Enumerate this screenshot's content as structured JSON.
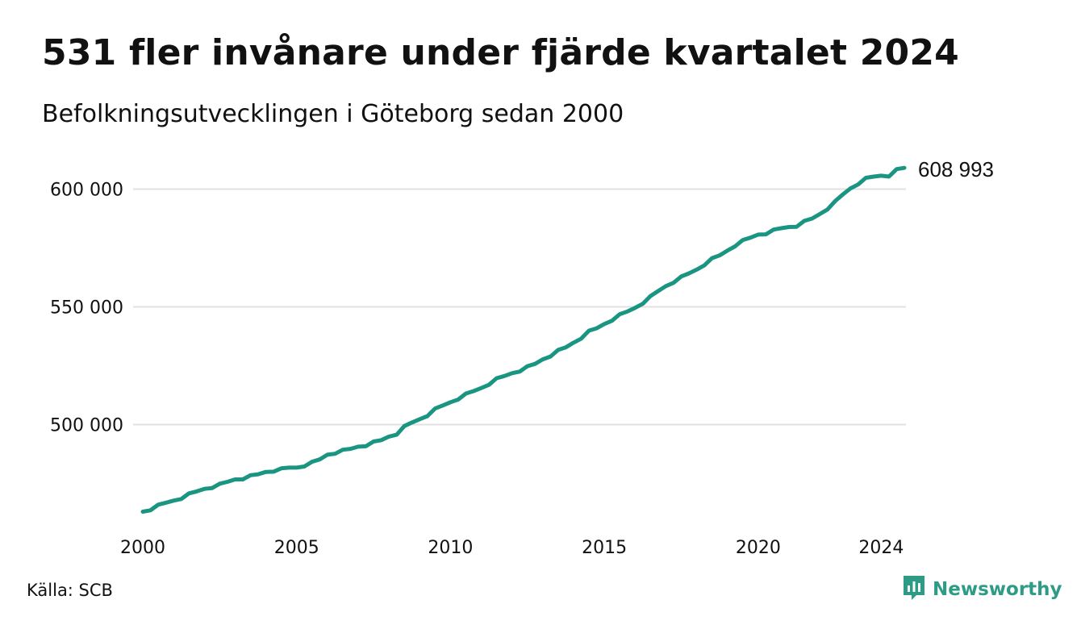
{
  "title": "531 fler invånare under fjärde kvartalet 2024",
  "subtitle": "Befolkningsutvecklingen i Göteborg sedan 2000",
  "source": "Källa: SCB",
  "brand": {
    "name": "Newsworthy",
    "icon": "newsworthy-logo-icon",
    "color": "#2d9b86"
  },
  "colors": {
    "line": "#1a9582",
    "grid": "#e1e1e1",
    "text": "#111111"
  },
  "chart_data": {
    "type": "line",
    "xlabel": "",
    "ylabel": "",
    "xlim": [
      2000.0,
      2024.75
    ],
    "ylim": [
      460000,
      612000
    ],
    "yticks": [
      {
        "value": 500000,
        "label": "500 000"
      },
      {
        "value": 550000,
        "label": "550 000"
      },
      {
        "value": 600000,
        "label": "600 000"
      }
    ],
    "xticks": [
      {
        "value": 2000,
        "label": "2000"
      },
      {
        "value": 2005,
        "label": "2005"
      },
      {
        "value": 2010,
        "label": "2010"
      },
      {
        "value": 2015,
        "label": "2015"
      },
      {
        "value": 2020,
        "label": "2020"
      },
      {
        "value": 2024,
        "label": "2024"
      }
    ],
    "end_label": "608 993",
    "grid": true,
    "legend": "none",
    "series": [
      {
        "x": [
          2000.0,
          2000.25,
          2000.5,
          2000.75,
          2001.0,
          2001.25,
          2001.5,
          2001.75,
          2002.0,
          2002.25,
          2002.5,
          2002.75,
          2003.0,
          2003.25,
          2003.5,
          2003.75,
          2004.0,
          2004.25,
          2004.5,
          2004.75,
          2005.0,
          2005.25,
          2005.5,
          2005.75,
          2006.0,
          2006.25,
          2006.5,
          2006.75,
          2007.0,
          2007.25,
          2007.5,
          2007.75,
          2008.0,
          2008.25,
          2008.5,
          2008.75,
          2009.0,
          2009.25,
          2009.5,
          2009.75,
          2010.0,
          2010.25,
          2010.5,
          2010.75,
          2011.0,
          2011.25,
          2011.5,
          2011.75,
          2012.0,
          2012.25,
          2012.5,
          2012.75,
          2013.0,
          2013.25,
          2013.5,
          2013.75,
          2014.0,
          2014.25,
          2014.5,
          2014.75,
          2015.0,
          2015.25,
          2015.5,
          2015.75,
          2016.0,
          2016.25,
          2016.5,
          2016.75,
          2017.0,
          2017.25,
          2017.5,
          2017.75,
          2018.0,
          2018.25,
          2018.5,
          2018.75,
          2019.0,
          2019.25,
          2019.5,
          2019.75,
          2020.0,
          2020.25,
          2020.5,
          2020.75,
          2021.0,
          2021.25,
          2021.5,
          2021.75,
          2022.0,
          2022.25,
          2022.5,
          2022.75,
          2023.0,
          2023.25,
          2023.5,
          2023.75,
          2024.0,
          2024.25,
          2024.5,
          2024.75
        ],
        "values": [
          463000,
          463600,
          466000,
          466800,
          467700,
          468400,
          470800,
          471600,
          472700,
          473000,
          474900,
          475700,
          476700,
          476700,
          478500,
          478900,
          479900,
          480000,
          481400,
          481700,
          481700,
          482200,
          484200,
          485200,
          487200,
          487600,
          489300,
          489700,
          490600,
          490800,
          492800,
          493400,
          494900,
          495700,
          499400,
          500900,
          502300,
          503600,
          506800,
          508100,
          509500,
          510600,
          513200,
          514200,
          515500,
          516900,
          519700,
          520600,
          521800,
          522500,
          524800,
          525800,
          527700,
          528900,
          531700,
          532800,
          534800,
          536500,
          539900,
          540900,
          542700,
          544100,
          546900,
          548000,
          549600,
          551300,
          554600,
          556700,
          558800,
          560200,
          562900,
          564200,
          565800,
          567600,
          570700,
          571900,
          573900,
          575700,
          578400,
          579400,
          580700,
          580800,
          582800,
          583400,
          583900,
          584000,
          586500,
          587500,
          589400,
          591300,
          594900,
          597700,
          600300,
          602000,
          604800,
          605300,
          605700,
          605300,
          608500,
          608993
        ]
      }
    ]
  }
}
